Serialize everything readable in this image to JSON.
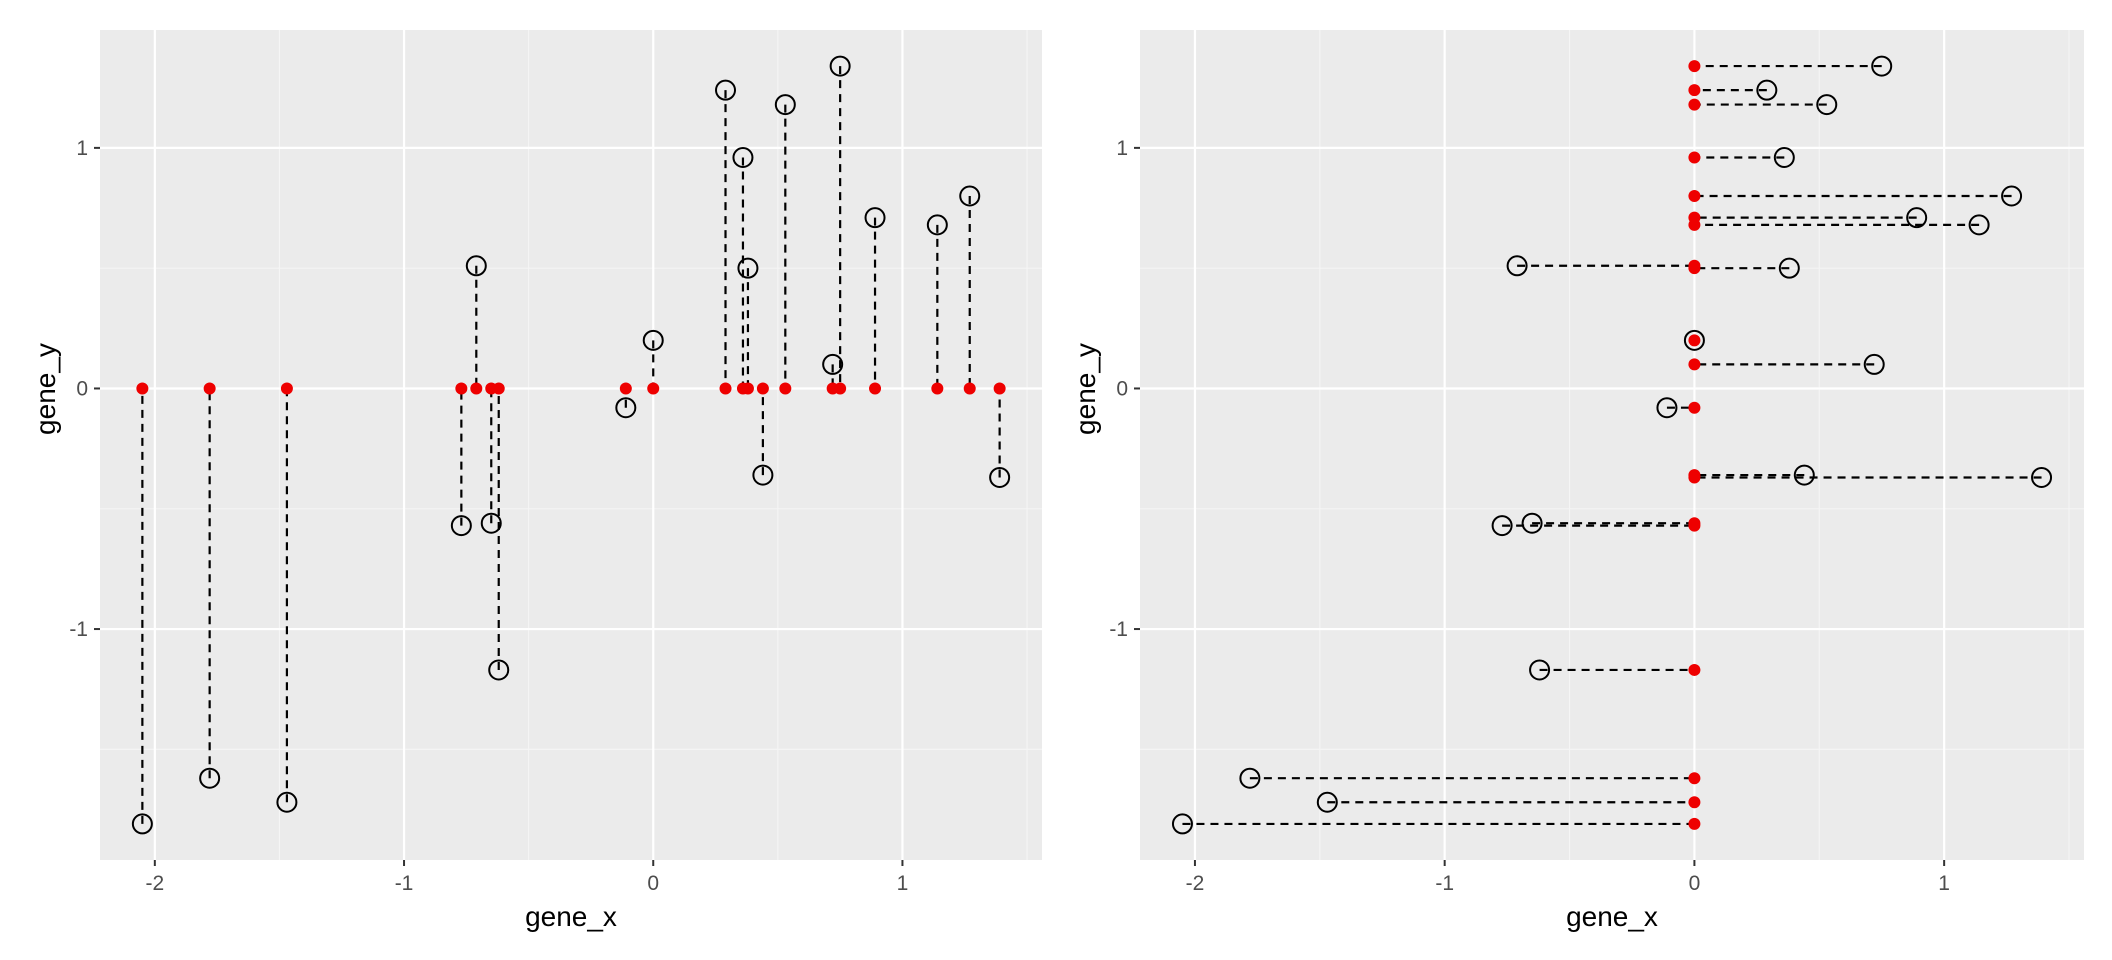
{
  "colors": {
    "panel_background": "#ebebeb",
    "grid_major": "#ffffff",
    "grid_minor": "#f5f5f5",
    "projected_point": "#ee0000",
    "original_point_stroke": "#000000",
    "segment": "#000000"
  },
  "chart_data": [
    {
      "type": "scatter",
      "title": "",
      "xlabel": "gene_x",
      "ylabel": "gene_y",
      "xlim": [
        -2.22,
        1.56
      ],
      "ylim": [
        -1.96,
        1.49
      ],
      "xticks": [
        -2,
        -1,
        0,
        1
      ],
      "xtick_labels": [
        "-2",
        "-1",
        "0",
        "1"
      ],
      "yticks": [
        -1,
        0,
        1
      ],
      "ytick_labels": [
        "-1",
        "0",
        "1"
      ],
      "grid": true,
      "legend": "none",
      "series": [
        {
          "role": "original",
          "marker": "open-circle",
          "x": [
            -2.05,
            -1.78,
            -1.47,
            -0.77,
            -0.71,
            -0.65,
            -0.62,
            -0.11,
            0.0,
            0.29,
            0.36,
            0.38,
            0.44,
            0.53,
            0.72,
            0.75,
            0.89,
            1.14,
            1.27,
            1.39
          ],
          "y": [
            -1.81,
            -1.62,
            -1.72,
            -0.57,
            0.51,
            -0.56,
            -1.17,
            -0.08,
            0.2,
            1.24,
            0.96,
            0.5,
            -0.36,
            1.18,
            0.1,
            1.34,
            0.71,
            0.68,
            0.8,
            -0.37
          ]
        },
        {
          "role": "projection",
          "marker": "filled-dot",
          "x": [
            -2.05,
            -1.78,
            -1.47,
            -0.77,
            -0.71,
            -0.65,
            -0.62,
            -0.11,
            0.0,
            0.29,
            0.36,
            0.38,
            0.44,
            0.53,
            0.72,
            0.75,
            0.89,
            1.14,
            1.27,
            1.39
          ],
          "y": [
            0,
            0,
            0,
            0,
            0,
            0,
            0,
            0,
            0,
            0,
            0,
            0,
            0,
            0,
            0,
            0,
            0,
            0,
            0,
            0
          ]
        }
      ],
      "segments": "dashed line joining each original point to its projection"
    },
    {
      "type": "scatter",
      "title": "",
      "xlabel": "gene_x",
      "ylabel": "gene_y",
      "xlim": [
        -2.22,
        1.56
      ],
      "ylim": [
        -1.96,
        1.49
      ],
      "xticks": [
        -2,
        -1,
        0,
        1
      ],
      "xtick_labels": [
        "-2",
        "-1",
        "0",
        "1"
      ],
      "yticks": [
        -1,
        0,
        1
      ],
      "ytick_labels": [
        "-1",
        "0",
        "1"
      ],
      "grid": true,
      "legend": "none",
      "series": [
        {
          "role": "original",
          "marker": "open-circle",
          "x": [
            -2.05,
            -1.78,
            -1.47,
            -0.77,
            -0.71,
            -0.65,
            -0.62,
            -0.11,
            0.0,
            0.29,
            0.36,
            0.38,
            0.44,
            0.53,
            0.72,
            0.75,
            0.89,
            1.14,
            1.27,
            1.39
          ],
          "y": [
            -1.81,
            -1.62,
            -1.72,
            -0.57,
            0.51,
            -0.56,
            -1.17,
            -0.08,
            0.2,
            1.24,
            0.96,
            0.5,
            -0.36,
            1.18,
            0.1,
            1.34,
            0.71,
            0.68,
            0.8,
            -0.37
          ]
        },
        {
          "role": "projection",
          "marker": "filled-dot",
          "x": [
            0,
            0,
            0,
            0,
            0,
            0,
            0,
            0,
            0,
            0,
            0,
            0,
            0,
            0,
            0,
            0,
            0,
            0,
            0,
            0
          ],
          "y": [
            -1.81,
            -1.62,
            -1.72,
            -0.57,
            0.51,
            -0.56,
            -1.17,
            -0.08,
            0.2,
            1.24,
            0.96,
            0.5,
            -0.36,
            1.18,
            0.1,
            1.34,
            0.71,
            0.68,
            0.8,
            -0.37
          ]
        }
      ],
      "segments": "dashed line joining each original point to its projection"
    }
  ]
}
